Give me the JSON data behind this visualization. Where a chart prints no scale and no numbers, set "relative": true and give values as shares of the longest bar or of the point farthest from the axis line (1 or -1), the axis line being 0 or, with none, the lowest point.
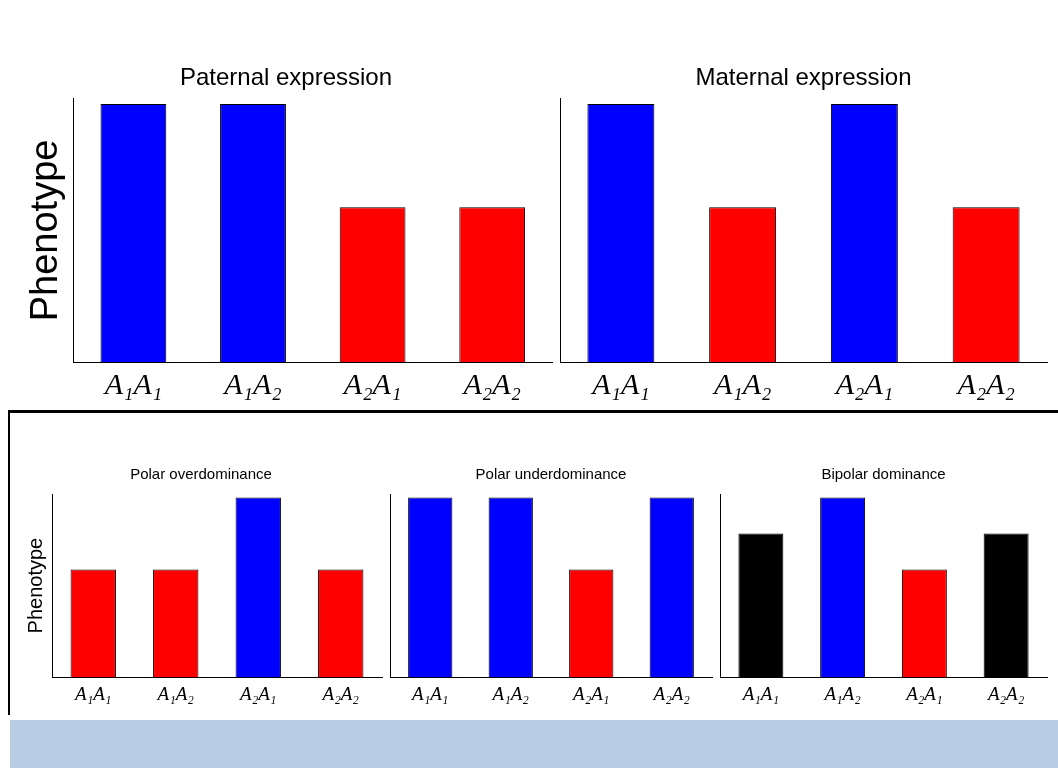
{
  "chart_data": [
    {
      "type": "bar",
      "title": "Paternal expression",
      "ylabel": "Phenotype",
      "relative": true,
      "categories": [
        "A₁A₁",
        "A₁A₂",
        "A₂A₁",
        "A₂A₂"
      ],
      "values": [
        1,
        1,
        0.6,
        0.6
      ],
      "colors": [
        "#0000ff",
        "#0000ff",
        "#ff0000",
        "#ff0000"
      ]
    },
    {
      "type": "bar",
      "title": "Maternal expression",
      "relative": true,
      "categories": [
        "A₁A₁",
        "A₁A₂",
        "A₂A₁",
        "A₂A₂"
      ],
      "values": [
        1,
        0.6,
        1,
        0.6
      ],
      "colors": [
        "#0000ff",
        "#ff0000",
        "#0000ff",
        "#ff0000"
      ]
    },
    {
      "type": "bar",
      "title": "Polar overdominance",
      "ylabel": "Phenotype",
      "relative": true,
      "categories": [
        "A₁A₁",
        "A₁A₂",
        "A₂A₁",
        "A₂A₂"
      ],
      "values": [
        0.6,
        0.6,
        1,
        0.6
      ],
      "colors": [
        "#ff0000",
        "#ff0000",
        "#0000ff",
        "#ff0000"
      ]
    },
    {
      "type": "bar",
      "title": "Polar underdominance",
      "relative": true,
      "categories": [
        "A₁A₁",
        "A₁A₂",
        "A₂A₁",
        "A₂A₂"
      ],
      "values": [
        1,
        1,
        0.6,
        1
      ],
      "colors": [
        "#0000ff",
        "#0000ff",
        "#ff0000",
        "#0000ff"
      ]
    },
    {
      "type": "bar",
      "title": "Bipolar dominance",
      "relative": true,
      "categories": [
        "A₁A₁",
        "A₁A₂",
        "A₂A₁",
        "A₂A₂"
      ],
      "values": [
        0.8,
        1,
        0.6,
        0.8
      ],
      "colors": [
        "#000000",
        "#0000ff",
        "#ff0000",
        "#000000"
      ]
    }
  ]
}
